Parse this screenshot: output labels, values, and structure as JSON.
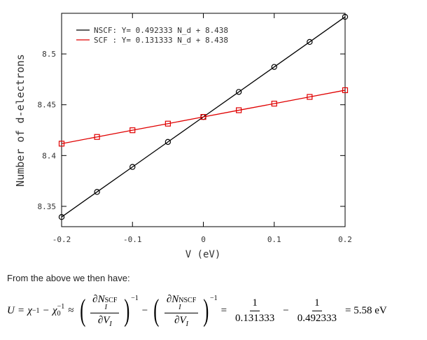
{
  "chart_data": {
    "type": "line",
    "xlabel": "V (eV)",
    "ylabel": "Number of d-electrons",
    "xlim": [
      -0.2,
      0.2
    ],
    "ylim": [
      8.33,
      8.54
    ],
    "xticks": [
      -0.2,
      -0.1,
      0,
      0.1,
      0.2
    ],
    "xtick_labels": [
      "-0.2",
      "-0.1",
      "0",
      "0.1",
      "0.2"
    ],
    "yticks": [
      8.35,
      8.4,
      8.45,
      8.5
    ],
    "ytick_labels": [
      "8.35",
      "8.4",
      "8.45",
      "8.5"
    ],
    "grid": false,
    "legend_position": "top-left",
    "x": [
      -0.2,
      -0.15,
      -0.1,
      -0.05,
      0,
      0.05,
      0.1,
      0.15,
      0.2
    ],
    "series": [
      {
        "name": "NSCF: Y= 0.492333 N_d + 8.438",
        "color": "#000000",
        "marker": "circle",
        "values": [
          8.3395,
          8.3642,
          8.3888,
          8.4134,
          8.438,
          8.4626,
          8.4872,
          8.5118,
          8.5365
        ]
      },
      {
        "name": "SCF : Y= 0.131333 N_d + 8.438",
        "color": "#e00000",
        "marker": "square",
        "values": [
          8.4117,
          8.4183,
          8.4249,
          8.4314,
          8.438,
          8.4446,
          8.4511,
          8.4577,
          8.4643
        ]
      }
    ]
  },
  "caption": "From the above we then have:",
  "equation": {
    "lhs": "U",
    "eq": "=",
    "chi": "χ",
    "inv": "−1",
    "minus": "−",
    "chi0": "χ",
    "zero": "0",
    "approx": "≈",
    "d": "∂",
    "N": "N",
    "I": "I",
    "scf": "SCF",
    "nscf": "NSCF",
    "V": "V",
    "one": "1",
    "den1": "0.131333",
    "den2": "0.492333",
    "result": "= 5.58 eV"
  }
}
